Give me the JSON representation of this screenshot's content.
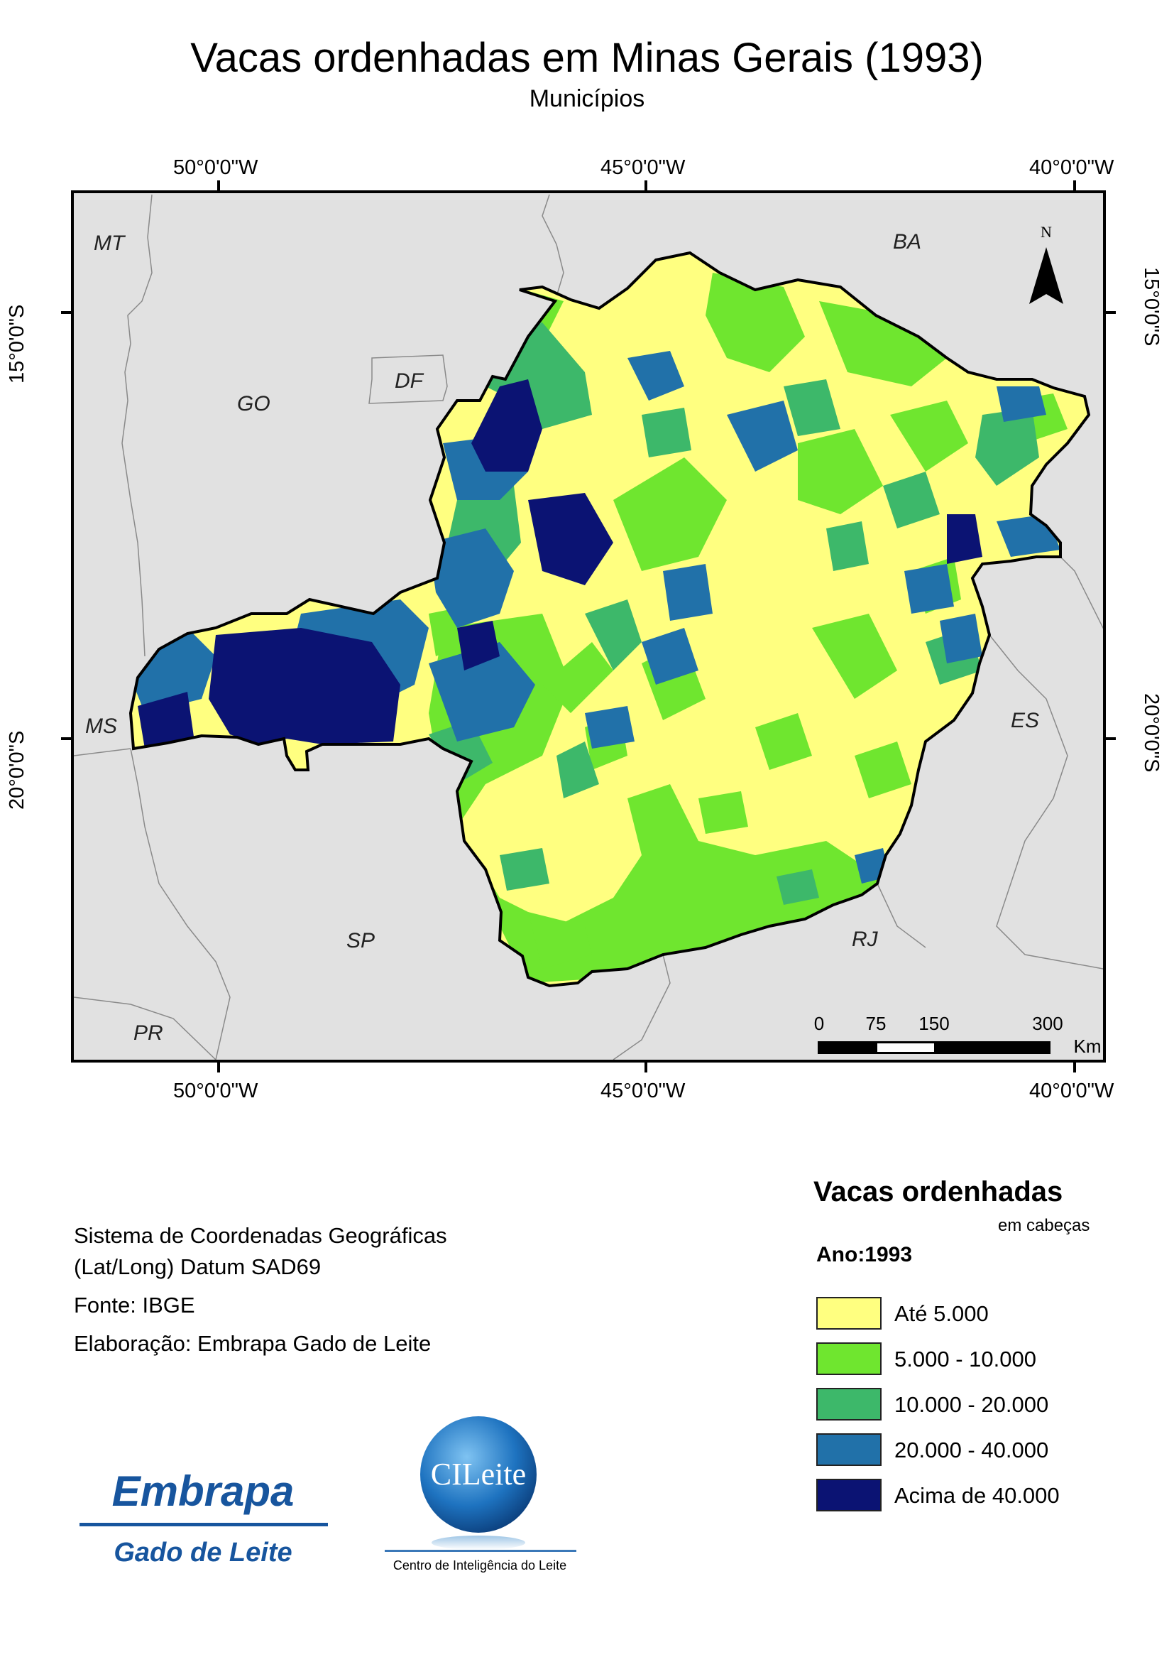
{
  "title": "Vacas ordenhadas em Minas Gerais (1993)",
  "subtitle": "Municípios",
  "coordinates": {
    "lon_top": [
      "50°0'0\"W",
      "45°0'0\"W",
      "40°0'0\"W"
    ],
    "lon_bottom": [
      "50°0'0\"W",
      "45°0'0\"W",
      "40°0'0\"W"
    ],
    "lat_left": [
      "15°0'0\"S",
      "20°0'0\"S"
    ],
    "lat_right": [
      "15°0'0\"S",
      "20°0'0\"S"
    ]
  },
  "map": {
    "state_labels": [
      "MT",
      "BA",
      "GO",
      "DF",
      "MS",
      "ES",
      "SP",
      "RJ",
      "PR"
    ],
    "north_label": "N",
    "scale_labels": [
      "0",
      "75",
      "150",
      "300"
    ],
    "scale_unit": "Km"
  },
  "info": {
    "crs_line1": "Sistema de Coordenadas Geográficas",
    "crs_line2": "(Lat/Long) Datum SAD69",
    "source": "Fonte: IBGE",
    "author": "Elaboração: Embrapa Gado de Leite"
  },
  "legend": {
    "title": "Vacas ordenhadas",
    "unit": "em cabeças",
    "year": "Ano:1993",
    "classes": [
      {
        "label": "Até 5.000",
        "color": "#ffff80"
      },
      {
        "label": "5.000 - 10.000",
        "color": "#6fe62f"
      },
      {
        "label": "10.000 - 20.000",
        "color": "#3db86a"
      },
      {
        "label": "20.000 - 40.000",
        "color": "#2171a9"
      },
      {
        "label": "Acima de 40.000",
        "color": "#0b1373"
      }
    ]
  },
  "logos": {
    "embrapa_word": "Embrapa",
    "embrapa_sub": "Gado de Leite",
    "cileite_word": "CILeite",
    "cileite_caption": "Centro de Inteligência do Leite"
  }
}
